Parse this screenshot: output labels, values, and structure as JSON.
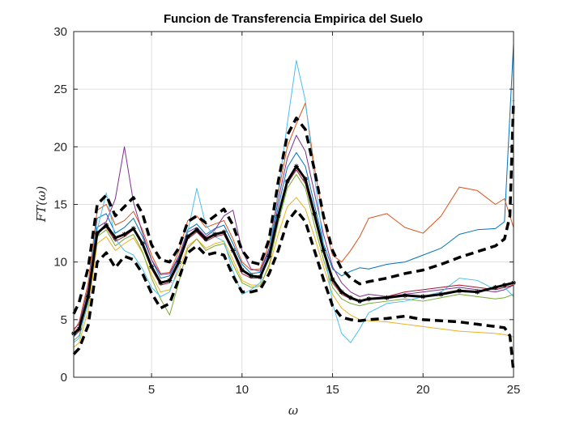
{
  "chart_data": {
    "type": "line",
    "title": "Funcion de Transferencia Empirica del Suelo",
    "xlabel": "ω",
    "ylabel": "FT(ω)",
    "xlim": [
      0.7,
      25
    ],
    "ylim": [
      0,
      30
    ],
    "xticks": [
      5,
      10,
      15,
      20,
      25
    ],
    "yticks": [
      0,
      5,
      10,
      15,
      20,
      25,
      30
    ],
    "xtick_labels": [
      "5",
      "10",
      "15",
      "20",
      "25"
    ],
    "ytick_labels": [
      "0",
      "5",
      "10",
      "15",
      "20",
      "25",
      "30"
    ],
    "grid": true,
    "mean": {
      "style": "black thick line with star markers",
      "color": "#000000",
      "x": [
        0.7,
        1.0,
        1.5,
        2.0,
        2.5,
        3.0,
        3.5,
        4.0,
        4.5,
        5.0,
        5.5,
        6.0,
        6.5,
        7.0,
        7.5,
        8.0,
        8.5,
        9.0,
        9.5,
        10.0,
        10.5,
        11.0,
        11.5,
        12.0,
        12.5,
        13.0,
        13.5,
        14.0,
        14.5,
        15.0,
        15.5,
        16.0,
        16.5,
        17.0,
        18.0,
        19.0,
        20.0,
        21.0,
        22.0,
        23.0,
        24.0,
        24.5,
        25.0
      ],
      "y": [
        3.8,
        4.2,
        7.0,
        12.5,
        13.2,
        12.1,
        12.4,
        12.9,
        11.6,
        9.6,
        8.2,
        8.4,
        10.0,
        12.2,
        12.8,
        12.0,
        12.4,
        12.6,
        11.0,
        9.3,
        8.8,
        8.7,
        10.5,
        14.0,
        17.0,
        18.3,
        17.2,
        14.2,
        11.0,
        8.5,
        7.4,
        6.9,
        6.6,
        6.8,
        6.9,
        7.1,
        7.0,
        7.2,
        7.5,
        7.4,
        7.8,
        8.0,
        8.2
      ]
    },
    "upper_bound": {
      "style": "black dashed",
      "color": "#000000",
      "x": [
        0.7,
        1.0,
        1.5,
        2.0,
        2.5,
        3.0,
        3.5,
        4.0,
        4.5,
        5.0,
        5.5,
        6.0,
        6.5,
        7.0,
        7.5,
        8.0,
        8.5,
        9.0,
        9.5,
        10.0,
        10.5,
        11.0,
        11.5,
        12.0,
        12.5,
        13.0,
        13.5,
        14.0,
        14.5,
        15.0,
        15.5,
        16.0,
        16.5,
        17.0,
        18.0,
        19.0,
        20.0,
        21.0,
        22.0,
        23.0,
        24.0,
        24.5,
        24.8,
        25.0
      ],
      "y": [
        5.5,
        6.5,
        9.5,
        15.0,
        15.8,
        14.0,
        14.8,
        15.6,
        14.2,
        11.5,
        10.2,
        10.0,
        11.2,
        13.5,
        14.0,
        13.4,
        14.0,
        14.6,
        13.2,
        11.0,
        10.0,
        9.8,
        12.0,
        17.0,
        21.0,
        22.5,
        21.5,
        18.0,
        14.0,
        11.0,
        9.4,
        8.6,
        8.1,
        8.3,
        8.6,
        9.0,
        9.3,
        9.8,
        10.4,
        10.9,
        11.4,
        12.0,
        14.0,
        24.0
      ]
    },
    "lower_bound": {
      "style": "black dashed",
      "color": "#000000",
      "x": [
        0.7,
        1.0,
        1.5,
        2.0,
        2.5,
        3.0,
        3.5,
        4.0,
        4.5,
        5.0,
        5.5,
        6.0,
        6.5,
        7.0,
        7.5,
        8.0,
        8.5,
        9.0,
        9.5,
        10.0,
        10.5,
        11.0,
        11.5,
        12.0,
        12.5,
        13.0,
        13.5,
        14.0,
        14.5,
        15.0,
        15.5,
        16.0,
        16.5,
        17.0,
        18.0,
        19.0,
        20.0,
        21.0,
        22.0,
        23.0,
        24.0,
        24.5,
        24.8,
        25.0
      ],
      "y": [
        2.0,
        2.5,
        4.5,
        10.0,
        10.8,
        9.5,
        10.5,
        10.2,
        9.0,
        7.3,
        6.0,
        6.4,
        8.5,
        10.8,
        11.4,
        10.6,
        10.8,
        10.6,
        8.8,
        7.4,
        7.4,
        7.6,
        9.0,
        11.0,
        13.5,
        14.5,
        13.5,
        11.0,
        8.5,
        6.2,
        5.2,
        5.0,
        4.9,
        5.0,
        5.1,
        5.3,
        5.0,
        4.9,
        4.8,
        4.6,
        4.4,
        4.3,
        3.6,
        0.5
      ]
    },
    "series": [
      {
        "color": "#0072BD",
        "x": [
          0.7,
          1.0,
          1.5,
          2.0,
          2.5,
          3.0,
          3.5,
          4.0,
          4.5,
          5.0,
          5.5,
          6.0,
          6.5,
          7.0,
          7.5,
          8.0,
          8.5,
          9.0,
          9.5,
          10.0,
          10.5,
          11.0,
          11.5,
          12.0,
          12.5,
          13.0,
          13.5,
          14.0,
          14.5,
          15.0,
          15.5,
          16.0,
          16.5,
          17.0,
          18.0,
          19.0,
          20.0,
          21.0,
          22.0,
          23.0,
          24.0,
          24.5,
          25.0
        ],
        "y": [
          3.5,
          4.0,
          7.5,
          13.8,
          14.2,
          12.5,
          13.0,
          13.8,
          12.2,
          10.2,
          8.6,
          8.8,
          10.4,
          12.8,
          13.3,
          12.4,
          12.9,
          13.2,
          11.6,
          9.8,
          9.0,
          9.1,
          11.0,
          14.8,
          18.2,
          19.5,
          18.3,
          15.0,
          11.6,
          9.4,
          8.8,
          9.2,
          9.5,
          9.4,
          9.8,
          10.0,
          10.6,
          11.2,
          12.4,
          12.8,
          12.9,
          13.5,
          29.0
        ]
      },
      {
        "color": "#D95319",
        "x": [
          0.7,
          1.0,
          1.5,
          2.0,
          2.5,
          3.0,
          3.5,
          4.0,
          4.5,
          5.0,
          5.5,
          6.0,
          6.5,
          7.0,
          7.5,
          8.0,
          8.5,
          9.0,
          9.5,
          10.0,
          10.5,
          11.0,
          11.5,
          12.0,
          12.5,
          13.0,
          13.5,
          14.0,
          14.5,
          15.0,
          15.5,
          16.0,
          16.5,
          17.0,
          18.0,
          19.0,
          20.0,
          21.0,
          22.0,
          23.0,
          24.0,
          24.5,
          25.0
        ],
        "y": [
          4.0,
          4.8,
          8.2,
          14.5,
          15.0,
          13.2,
          13.6,
          14.4,
          12.8,
          10.6,
          9.0,
          9.1,
          10.9,
          13.6,
          14.0,
          13.0,
          13.3,
          13.6,
          12.0,
          10.0,
          9.3,
          9.4,
          11.6,
          16.0,
          20.0,
          22.0,
          23.8,
          18.2,
          13.6,
          10.6,
          10.0,
          11.0,
          12.2,
          13.8,
          14.2,
          13.0,
          12.5,
          14.0,
          16.5,
          16.2,
          15.0,
          15.5,
          13.0
        ]
      },
      {
        "color": "#EDB120",
        "x": [
          0.7,
          1.0,
          1.5,
          2.0,
          2.5,
          3.0,
          3.5,
          4.0,
          4.5,
          5.0,
          5.5,
          6.0,
          6.5,
          7.0,
          7.5,
          8.0,
          8.5,
          9.0,
          9.5,
          10.0,
          10.5,
          11.0,
          11.5,
          12.0,
          12.5,
          13.0,
          13.5,
          14.0,
          14.5,
          15.0,
          15.5,
          16.0,
          16.5,
          17.0,
          18.0,
          19.0,
          20.0,
          21.0,
          22.0,
          23.0,
          24.0,
          24.5,
          25.0
        ],
        "y": [
          2.6,
          3.0,
          5.8,
          11.6,
          12.2,
          11.0,
          11.6,
          12.1,
          10.8,
          8.9,
          7.4,
          7.6,
          9.2,
          11.4,
          12.0,
          11.2,
          11.6,
          11.8,
          10.2,
          8.4,
          8.0,
          8.0,
          9.6,
          12.4,
          14.8,
          15.6,
          14.6,
          12.2,
          9.6,
          7.2,
          6.0,
          5.4,
          5.0,
          4.9,
          4.8,
          4.6,
          4.4,
          4.2,
          4.0,
          3.9,
          3.8,
          3.7,
          3.5
        ]
      },
      {
        "color": "#7E2F8E",
        "x": [
          0.7,
          1.0,
          1.5,
          2.0,
          2.5,
          3.0,
          3.5,
          4.0,
          4.5,
          5.0,
          5.5,
          6.0,
          6.5,
          7.0,
          7.5,
          8.0,
          8.5,
          9.0,
          9.5,
          10.0,
          10.5,
          11.0,
          11.5,
          12.0,
          12.5,
          13.0,
          13.5,
          14.0,
          14.5,
          15.0,
          15.5,
          16.0,
          16.5,
          17.0,
          18.0,
          19.0,
          20.0,
          21.0,
          22.0,
          23.0,
          24.0,
          24.5,
          25.0
        ],
        "y": [
          4.2,
          4.6,
          7.8,
          13.0,
          13.5,
          15.5,
          20.0,
          15.2,
          12.5,
          10.2,
          8.9,
          9.0,
          10.5,
          12.6,
          13.0,
          12.2,
          12.8,
          14.0,
          14.5,
          11.0,
          9.4,
          9.2,
          11.2,
          15.4,
          19.0,
          21.0,
          19.6,
          16.0,
          12.4,
          9.6,
          8.2,
          7.4,
          7.0,
          7.2,
          7.0,
          7.2,
          7.4,
          7.6,
          7.8,
          7.6,
          7.4,
          7.6,
          8.0
        ]
      },
      {
        "color": "#77AC30",
        "x": [
          0.7,
          1.0,
          1.5,
          2.0,
          2.5,
          3.0,
          3.5,
          4.0,
          4.5,
          5.0,
          5.5,
          6.0,
          6.5,
          7.0,
          7.5,
          8.0,
          8.5,
          9.0,
          9.5,
          10.0,
          10.5,
          11.0,
          11.5,
          12.0,
          12.5,
          13.0,
          13.5,
          14.0,
          14.5,
          15.0,
          15.5,
          16.0,
          16.5,
          17.0,
          18.0,
          19.0,
          20.0,
          21.0,
          22.0,
          23.0,
          24.0,
          24.5,
          25.0
        ],
        "y": [
          3.2,
          3.6,
          6.4,
          12.2,
          12.8,
          11.4,
          12.0,
          12.4,
          10.9,
          8.6,
          6.8,
          5.4,
          8.2,
          11.2,
          12.0,
          11.0,
          11.4,
          11.6,
          9.8,
          8.2,
          7.8,
          7.9,
          9.8,
          13.4,
          16.4,
          17.6,
          16.4,
          13.2,
          10.2,
          7.8,
          6.8,
          6.4,
          6.2,
          6.4,
          6.6,
          6.8,
          6.6,
          6.9,
          7.2,
          7.0,
          6.8,
          6.9,
          7.2
        ]
      },
      {
        "color": "#4DBEEE",
        "x": [
          0.7,
          1.0,
          1.5,
          2.0,
          2.5,
          3.0,
          3.5,
          4.0,
          4.5,
          5.0,
          5.5,
          6.0,
          6.5,
          7.0,
          7.5,
          8.0,
          8.5,
          9.0,
          9.5,
          10.0,
          10.5,
          11.0,
          11.5,
          12.0,
          12.5,
          13.0,
          13.5,
          14.0,
          14.5,
          15.0,
          15.5,
          16.0,
          16.5,
          17.0,
          18.0,
          19.0,
          20.0,
          21.0,
          22.0,
          23.0,
          24.0,
          24.5,
          25.0
        ],
        "y": [
          3.0,
          3.4,
          6.6,
          12.8,
          16.0,
          12.0,
          11.0,
          10.6,
          9.4,
          7.8,
          7.0,
          7.4,
          9.6,
          12.6,
          16.4,
          13.2,
          12.2,
          11.8,
          9.2,
          7.2,
          7.6,
          8.2,
          11.0,
          16.2,
          22.0,
          27.5,
          24.0,
          17.4,
          11.6,
          6.4,
          3.8,
          3.0,
          4.2,
          5.6,
          6.4,
          6.6,
          7.0,
          7.4,
          8.6,
          8.4,
          7.6,
          7.8,
          7.0
        ]
      },
      {
        "color": "#A2142F",
        "x": [
          0.7,
          1.0,
          1.5,
          2.0,
          2.5,
          3.0,
          3.5,
          4.0,
          4.5,
          5.0,
          5.5,
          6.0,
          6.5,
          7.0,
          7.5,
          8.0,
          8.5,
          9.0,
          9.5,
          10.0,
          10.5,
          11.0,
          11.5,
          12.0,
          12.5,
          13.0,
          13.5,
          14.0,
          14.5,
          15.0,
          15.5,
          16.0,
          16.5,
          17.0,
          18.0,
          19.0,
          20.0,
          21.0,
          22.0,
          23.0,
          24.0,
          24.5,
          25.0
        ],
        "y": [
          3.6,
          4.0,
          7.0,
          12.6,
          13.0,
          11.8,
          12.2,
          12.8,
          11.4,
          9.4,
          8.0,
          8.2,
          9.8,
          12.0,
          12.6,
          11.8,
          12.2,
          12.4,
          10.8,
          9.0,
          8.6,
          8.6,
          10.4,
          13.8,
          16.8,
          18.0,
          16.8,
          13.8,
          10.8,
          8.2,
          7.2,
          6.8,
          6.6,
          6.8,
          7.0,
          7.4,
          7.6,
          7.8,
          8.0,
          7.8,
          7.6,
          7.8,
          8.0
        ]
      }
    ]
  }
}
